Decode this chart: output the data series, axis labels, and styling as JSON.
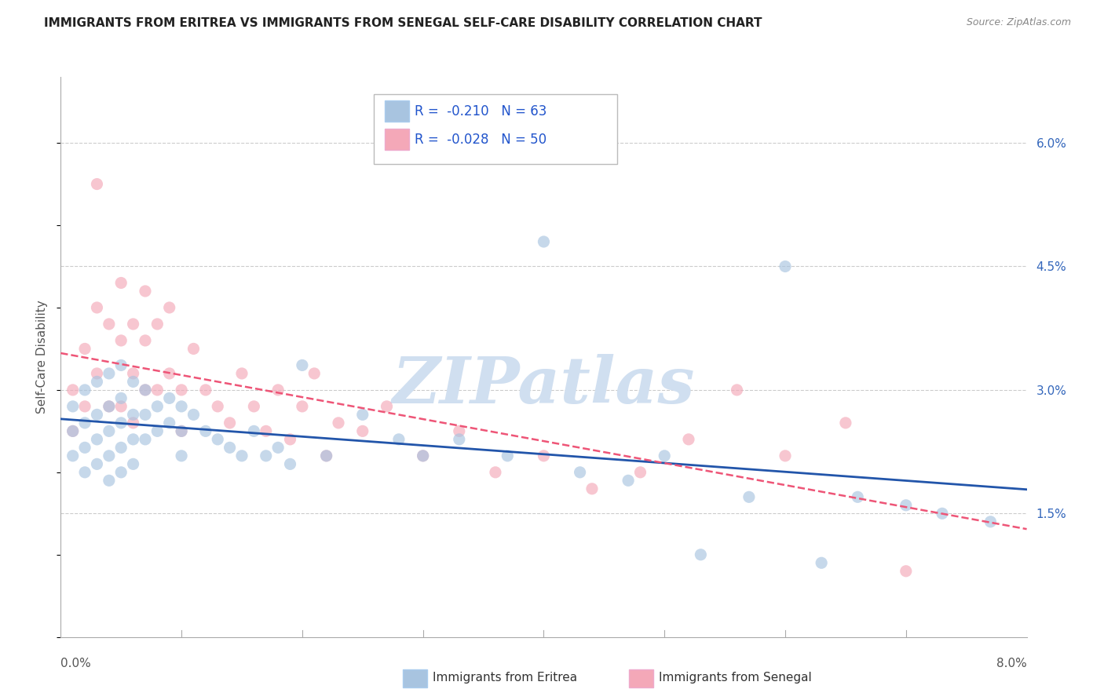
{
  "title": "IMMIGRANTS FROM ERITREA VS IMMIGRANTS FROM SENEGAL SELF-CARE DISABILITY CORRELATION CHART",
  "source": "Source: ZipAtlas.com",
  "ylabel": "Self-Care Disability",
  "right_yticks": [
    "6.0%",
    "4.5%",
    "3.0%",
    "1.5%"
  ],
  "right_ytick_vals": [
    0.06,
    0.045,
    0.03,
    0.015
  ],
  "legend1_r": "-0.210",
  "legend1_n": "63",
  "legend2_r": "-0.028",
  "legend2_n": "50",
  "eritrea_color": "#a8c4e0",
  "senegal_color": "#f4a8b8",
  "trendline_eritrea_color": "#2255aa",
  "trendline_senegal_color": "#ee5577",
  "watermark": "ZIPatlas",
  "watermark_color": "#d0dff0",
  "xmin": 0.0,
  "xmax": 0.08,
  "ymin": 0.0,
  "ymax": 0.068,
  "eritrea_x": [
    0.001,
    0.001,
    0.001,
    0.002,
    0.002,
    0.002,
    0.002,
    0.003,
    0.003,
    0.003,
    0.003,
    0.004,
    0.004,
    0.004,
    0.004,
    0.004,
    0.005,
    0.005,
    0.005,
    0.005,
    0.005,
    0.006,
    0.006,
    0.006,
    0.006,
    0.007,
    0.007,
    0.007,
    0.008,
    0.008,
    0.009,
    0.009,
    0.01,
    0.01,
    0.01,
    0.011,
    0.012,
    0.013,
    0.014,
    0.015,
    0.016,
    0.017,
    0.018,
    0.019,
    0.02,
    0.022,
    0.025,
    0.028,
    0.03,
    0.033,
    0.037,
    0.04,
    0.043,
    0.047,
    0.05,
    0.053,
    0.057,
    0.06,
    0.063,
    0.066,
    0.07,
    0.073,
    0.077
  ],
  "eritrea_y": [
    0.028,
    0.025,
    0.022,
    0.03,
    0.026,
    0.023,
    0.02,
    0.031,
    0.027,
    0.024,
    0.021,
    0.032,
    0.028,
    0.025,
    0.022,
    0.019,
    0.033,
    0.029,
    0.026,
    0.023,
    0.02,
    0.031,
    0.027,
    0.024,
    0.021,
    0.03,
    0.027,
    0.024,
    0.028,
    0.025,
    0.029,
    0.026,
    0.028,
    0.025,
    0.022,
    0.027,
    0.025,
    0.024,
    0.023,
    0.022,
    0.025,
    0.022,
    0.023,
    0.021,
    0.033,
    0.022,
    0.027,
    0.024,
    0.022,
    0.024,
    0.022,
    0.048,
    0.02,
    0.019,
    0.022,
    0.01,
    0.017,
    0.045,
    0.009,
    0.017,
    0.016,
    0.015,
    0.014
  ],
  "senegal_x": [
    0.001,
    0.001,
    0.002,
    0.002,
    0.003,
    0.003,
    0.003,
    0.004,
    0.004,
    0.005,
    0.005,
    0.005,
    0.006,
    0.006,
    0.006,
    0.007,
    0.007,
    0.007,
    0.008,
    0.008,
    0.009,
    0.009,
    0.01,
    0.01,
    0.011,
    0.012,
    0.013,
    0.014,
    0.015,
    0.016,
    0.017,
    0.018,
    0.019,
    0.02,
    0.021,
    0.022,
    0.023,
    0.025,
    0.027,
    0.03,
    0.033,
    0.036,
    0.04,
    0.044,
    0.048,
    0.052,
    0.056,
    0.06,
    0.065,
    0.07
  ],
  "senegal_y": [
    0.03,
    0.025,
    0.035,
    0.028,
    0.04,
    0.055,
    0.032,
    0.038,
    0.028,
    0.043,
    0.036,
    0.028,
    0.038,
    0.032,
    0.026,
    0.042,
    0.036,
    0.03,
    0.038,
    0.03,
    0.04,
    0.032,
    0.03,
    0.025,
    0.035,
    0.03,
    0.028,
    0.026,
    0.032,
    0.028,
    0.025,
    0.03,
    0.024,
    0.028,
    0.032,
    0.022,
    0.026,
    0.025,
    0.028,
    0.022,
    0.025,
    0.02,
    0.022,
    0.018,
    0.02,
    0.024,
    0.03,
    0.022,
    0.026,
    0.008
  ],
  "background_color": "#ffffff",
  "grid_color": "#cccccc"
}
